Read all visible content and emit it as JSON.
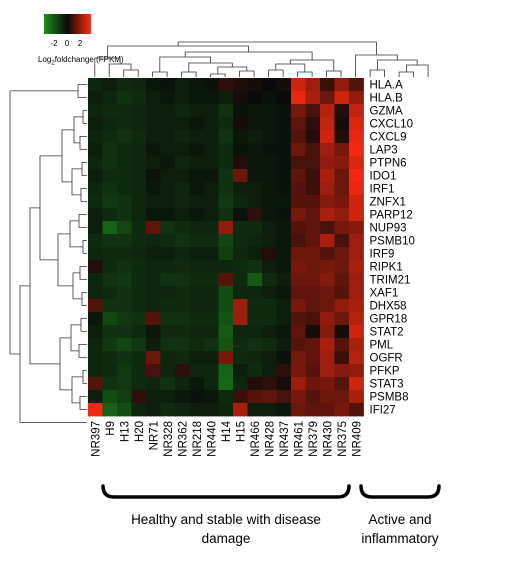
{
  "legend": {
    "ticks": [
      "-2",
      "0",
      "2"
    ],
    "title_main": "Log",
    "title_sub": "2",
    "title_rest": "foldchange (FPKM)",
    "colors": [
      "#1e8f1e",
      "#0a0a0a",
      "#ff2a10"
    ]
  },
  "groups": [
    {
      "line1": "Healthy  and stable with disease",
      "line2": "damage"
    },
    {
      "line1": "Active  and",
      "line2": "inflammatory"
    }
  ],
  "chart_data": {
    "type": "heatmap",
    "color_scale": {
      "min": -2,
      "mid": 0,
      "max": 2
    },
    "columns": [
      "NR397",
      "H9",
      "H13",
      "H20",
      "NR71",
      "NR328",
      "NR362",
      "NR218",
      "NR440",
      "H14",
      "H15",
      "NR466",
      "NR428",
      "NR437",
      "NR461",
      "NR379",
      "NR430",
      "NR375",
      "NR409"
    ],
    "rows": [
      "HLA.A",
      "HLA.B",
      "GZMA",
      "CXCL10",
      "CXCL9",
      "LAP3",
      "PTPN6",
      "IDO1",
      "IRF1",
      "ZNFX1",
      "PARP12",
      "NUP93",
      "PSMB10",
      "IRF9",
      "RIPK1",
      "TRIM21",
      "XAF1",
      "DHX58",
      "GPR18",
      "STAT2",
      "PML",
      "OGFR",
      "PFKP",
      "STAT3",
      "PSMB8",
      "IFI27"
    ],
    "values": [
      [
        -0.4,
        -0.3,
        -0.5,
        -0.4,
        -0.2,
        -0.1,
        -0.3,
        -0.2,
        -0.1,
        0.3,
        0.2,
        0.1,
        0.0,
        0.1,
        1.6,
        1.2,
        0.4,
        1.1,
        0.6
      ],
      [
        -0.3,
        -0.4,
        -0.6,
        -0.5,
        -0.3,
        -0.2,
        -0.3,
        -0.2,
        -0.2,
        -0.3,
        0.1,
        0.0,
        -0.1,
        0.0,
        1.8,
        1.3,
        0.8,
        1.6,
        1.1
      ],
      [
        -0.4,
        -0.5,
        -0.5,
        -0.4,
        -0.3,
        -0.3,
        -0.4,
        -0.3,
        -0.3,
        -0.6,
        -0.1,
        -0.2,
        -0.2,
        -0.1,
        0.9,
        0.5,
        1.4,
        0.2,
        1.5
      ],
      [
        -0.3,
        -0.4,
        -0.5,
        -0.4,
        -0.3,
        -0.3,
        -0.3,
        -0.2,
        -0.3,
        -0.5,
        0.1,
        -0.2,
        -0.2,
        -0.1,
        0.7,
        0.3,
        1.5,
        0.1,
        1.7
      ],
      [
        -0.4,
        -0.5,
        -0.6,
        -0.5,
        -0.3,
        -0.3,
        -0.4,
        -0.3,
        -0.3,
        -0.6,
        -0.2,
        -0.3,
        -0.2,
        -0.1,
        0.6,
        0.2,
        1.6,
        0.2,
        1.8
      ],
      [
        -0.3,
        -0.6,
        -0.5,
        -0.4,
        -0.2,
        -0.3,
        -0.3,
        -0.2,
        -0.3,
        -0.5,
        -0.1,
        -0.2,
        -0.1,
        -0.1,
        0.8,
        0.5,
        1.2,
        0.9,
        1.9
      ],
      [
        -0.4,
        -0.6,
        -0.5,
        -0.4,
        -0.3,
        -0.2,
        -0.4,
        -0.3,
        -0.3,
        -0.5,
        0.2,
        -0.2,
        -0.2,
        -0.1,
        0.5,
        0.5,
        1.1,
        1.0,
        1.7
      ],
      [
        -0.3,
        -0.5,
        -0.5,
        -0.4,
        -0.1,
        -0.3,
        -0.3,
        -0.2,
        -0.2,
        -0.6,
        0.8,
        -0.2,
        -0.2,
        -0.1,
        0.7,
        0.4,
        1.3,
        0.8,
        1.9
      ],
      [
        -0.4,
        -0.6,
        -0.5,
        -0.4,
        -0.2,
        -0.3,
        -0.4,
        -0.2,
        -0.3,
        -0.6,
        -0.3,
        -0.3,
        -0.2,
        -0.1,
        0.6,
        0.4,
        1.2,
        0.8,
        1.8
      ],
      [
        -0.5,
        -0.7,
        -0.6,
        -0.4,
        -0.3,
        -0.3,
        -0.4,
        -0.3,
        -0.3,
        -0.7,
        -0.4,
        -0.3,
        -0.2,
        -0.2,
        0.6,
        0.6,
        1.0,
        0.9,
        1.6
      ],
      [
        -0.3,
        -0.5,
        -0.6,
        -0.4,
        -0.2,
        -0.2,
        -0.3,
        -0.2,
        -0.3,
        -0.6,
        -0.1,
        0.3,
        -0.2,
        -0.1,
        0.9,
        0.7,
        1.3,
        1.1,
        1.6
      ],
      [
        -0.3,
        -1.3,
        -0.9,
        -0.5,
        0.7,
        -0.6,
        -0.5,
        -0.4,
        -0.4,
        1.1,
        -0.5,
        -0.5,
        -0.3,
        -0.2,
        0.6,
        0.7,
        0.5,
        0.9,
        1.0
      ],
      [
        -0.5,
        -0.6,
        -0.6,
        -0.5,
        -0.4,
        -0.5,
        -0.6,
        -0.5,
        -0.5,
        -0.9,
        -0.5,
        -0.4,
        -0.3,
        -0.2,
        0.5,
        0.7,
        1.3,
        0.5,
        1.2
      ],
      [
        -0.4,
        -0.5,
        -0.5,
        -0.4,
        -0.3,
        -0.3,
        -0.4,
        -0.3,
        -0.3,
        -0.8,
        -0.4,
        -0.3,
        0.2,
        -0.2,
        0.8,
        0.8,
        0.6,
        0.8,
        1.2
      ],
      [
        0.2,
        -0.5,
        -0.6,
        -0.5,
        -0.4,
        -0.4,
        -0.5,
        -0.4,
        -0.4,
        -0.4,
        -0.5,
        -0.6,
        -0.3,
        -0.2,
        0.9,
        0.8,
        0.9,
        0.8,
        1.3
      ],
      [
        -0.4,
        -0.6,
        -0.7,
        -0.5,
        -0.4,
        -0.6,
        -0.6,
        -0.5,
        -0.5,
        0.6,
        -0.5,
        -1.2,
        -0.5,
        -0.3,
        0.8,
        0.8,
        1.0,
        0.7,
        1.2
      ],
      [
        -0.4,
        -0.5,
        -0.6,
        -0.5,
        -0.4,
        -0.4,
        -0.5,
        -0.4,
        -0.4,
        -1.0,
        -0.4,
        -0.4,
        -0.3,
        -0.2,
        0.7,
        0.7,
        0.8,
        0.6,
        1.2
      ],
      [
        0.6,
        -0.6,
        -0.6,
        -0.5,
        -0.4,
        -0.5,
        -0.5,
        -0.4,
        -0.4,
        -1.0,
        1.2,
        -0.5,
        -0.5,
        -0.3,
        0.9,
        0.7,
        0.8,
        1.1,
        1.3
      ],
      [
        -0.2,
        -0.9,
        -0.7,
        -0.6,
        0.6,
        -0.6,
        -0.6,
        -0.5,
        -0.5,
        -1.1,
        1.2,
        -0.5,
        -0.5,
        -0.3,
        0.6,
        0.5,
        1.1,
        0.8,
        1.4
      ],
      [
        -0.3,
        -0.6,
        -0.6,
        -0.5,
        -0.2,
        -0.5,
        -0.5,
        -0.4,
        -0.4,
        -1.2,
        -0.4,
        -0.4,
        -0.3,
        -0.2,
        0.7,
        0.1,
        1.0,
        0.1,
        1.6
      ],
      [
        -0.4,
        -0.7,
        -0.9,
        -0.7,
        -0.3,
        -0.6,
        -0.6,
        -0.5,
        -0.6,
        -1.1,
        -0.5,
        -0.6,
        -0.5,
        -0.3,
        0.6,
        0.7,
        1.3,
        0.6,
        1.3
      ],
      [
        -0.4,
        -0.5,
        -0.6,
        -0.5,
        0.8,
        -0.4,
        -0.5,
        -0.3,
        -0.3,
        0.9,
        -0.5,
        -0.4,
        -0.3,
        -0.1,
        0.9,
        0.7,
        1.2,
        0.4,
        1.4
      ],
      [
        -0.4,
        -0.5,
        -0.7,
        -0.5,
        0.5,
        -0.4,
        0.3,
        -0.4,
        -0.4,
        -1.3,
        -0.3,
        -0.5,
        -0.3,
        0.3,
        0.9,
        0.6,
        1.2,
        1.0,
        1.1
      ],
      [
        0.6,
        -0.6,
        -0.7,
        -0.5,
        -0.4,
        -0.6,
        -0.4,
        -0.2,
        -0.4,
        -1.4,
        -0.4,
        0.2,
        0.3,
        0.1,
        1.2,
        0.8,
        0.9,
        0.6,
        1.6
      ],
      [
        -0.3,
        -1.0,
        -0.8,
        0.3,
        -0.3,
        -0.3,
        -0.2,
        -0.1,
        -0.2,
        -0.5,
        0.4,
        0.6,
        0.7,
        0.5,
        0.9,
        0.6,
        0.8,
        0.8,
        1.3
      ],
      [
        1.9,
        -1.3,
        -1.0,
        -0.4,
        -0.3,
        -0.5,
        -0.4,
        -0.3,
        -0.3,
        -0.4,
        1.3,
        -0.3,
        -0.3,
        -0.2,
        0.8,
        0.7,
        0.7,
        0.9,
        0.6
      ]
    ]
  }
}
